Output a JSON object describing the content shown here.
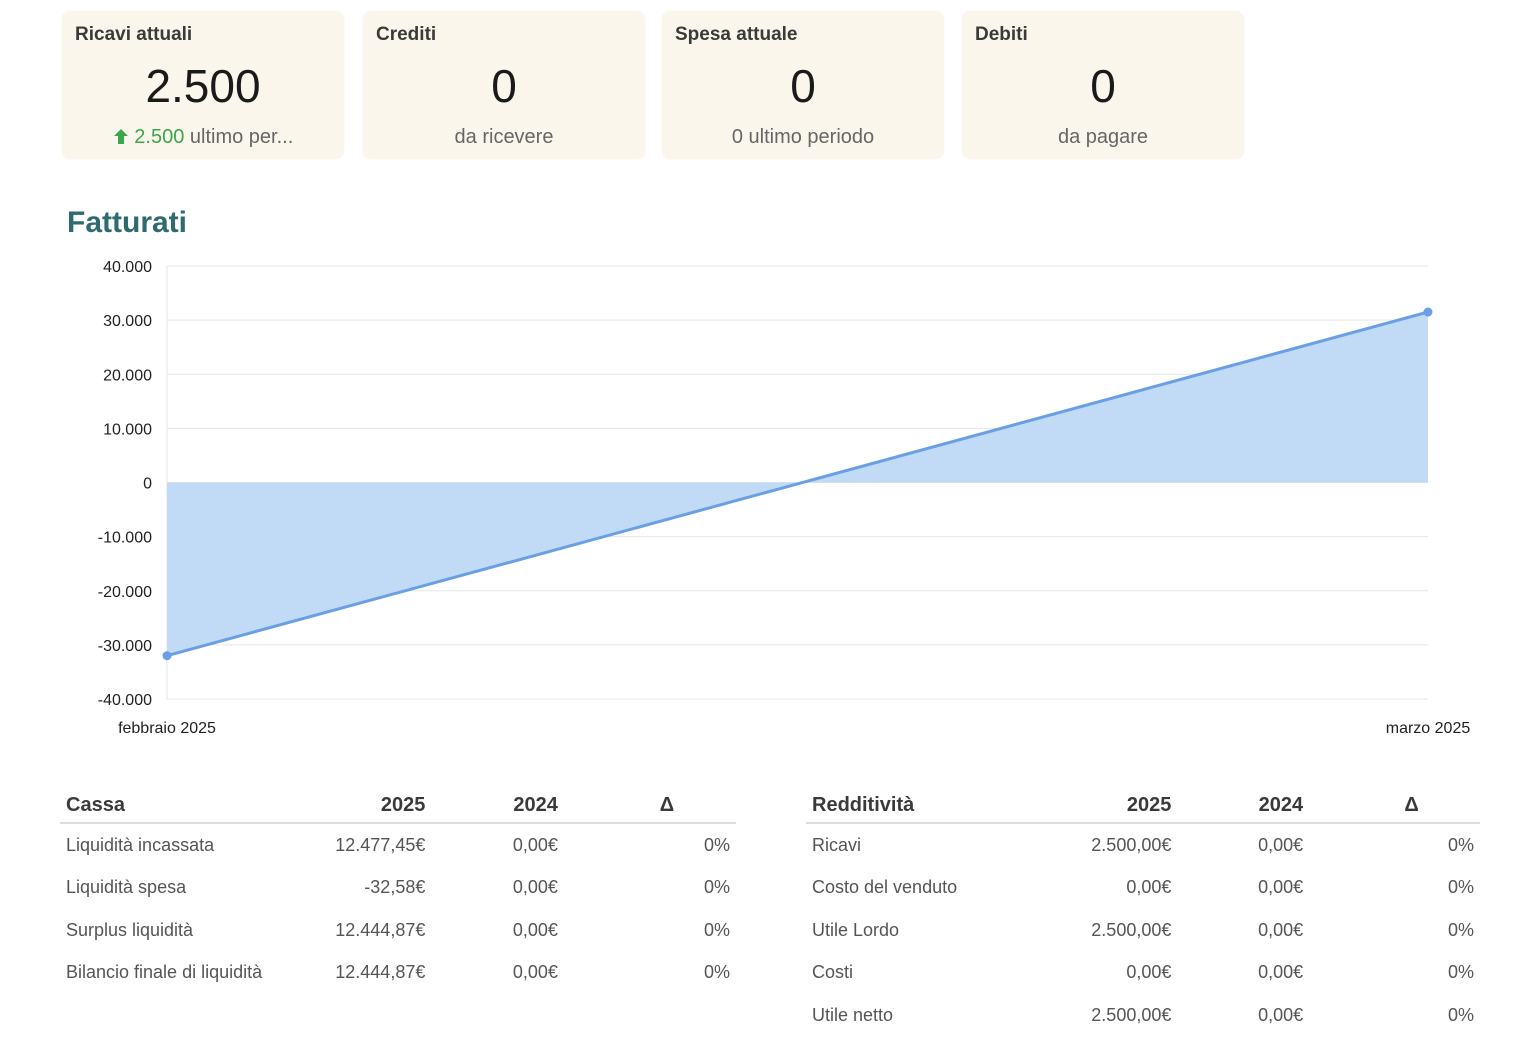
{
  "cards": [
    {
      "title": "Ricavi attuali",
      "value": "2.500",
      "sub_highlight": "2.500",
      "sub_text": " ultimo per...",
      "trend": "up-arrow-icon"
    },
    {
      "title": "Crediti",
      "value": "0",
      "sub_text": "da ricevere"
    },
    {
      "title": "Spesa attuale",
      "value": "0",
      "sub_text": "0 ultimo periodo"
    },
    {
      "title": "Debiti",
      "value": "0",
      "sub_text": "da pagare"
    }
  ],
  "colors": {
    "accent_title": "#2e6b6f",
    "positive": "#3aa84a",
    "series_line": "#6a9fe6",
    "series_fill": "#c1daf5",
    "card_bg": "#fbf6ec"
  },
  "chart_title": "Fatturati",
  "chart_data": {
    "type": "area",
    "title": "Fatturati",
    "categories": [
      "febbraio 2025",
      "marzo 2025"
    ],
    "series": [
      {
        "values": [
          -32000,
          31500
        ]
      }
    ],
    "ylim": [
      -40000,
      40000
    ],
    "yticks": [
      "40.000",
      "30.000",
      "20.000",
      "10.000",
      "0",
      "-10.000",
      "-20.000",
      "-30.000",
      "-40.000"
    ],
    "grid": true
  },
  "cassa": {
    "headers": [
      "Cassa",
      "2025",
      "2024",
      "Δ"
    ],
    "rows": [
      [
        "Liquidità incassata",
        "12.477,45€",
        "0,00€",
        "0%"
      ],
      [
        "Liquidità spesa",
        "-32,58€",
        "0,00€",
        "0%"
      ],
      [
        "Surplus liquidità",
        "12.444,87€",
        "0,00€",
        "0%"
      ],
      [
        "Bilancio finale di liquidità",
        "12.444,87€",
        "0,00€",
        "0%"
      ]
    ]
  },
  "redditivita": {
    "headers": [
      "Redditività",
      "2025",
      "2024",
      "Δ"
    ],
    "rows": [
      [
        "Ricavi",
        "2.500,00€",
        "0,00€",
        "0%"
      ],
      [
        "Costo del venduto",
        "0,00€",
        "0,00€",
        "0%"
      ],
      [
        "Utile Lordo",
        "2.500,00€",
        "0,00€",
        "0%"
      ],
      [
        "Costi",
        "0,00€",
        "0,00€",
        "0%"
      ],
      [
        "Utile netto",
        "2.500,00€",
        "0,00€",
        "0%"
      ]
    ]
  }
}
